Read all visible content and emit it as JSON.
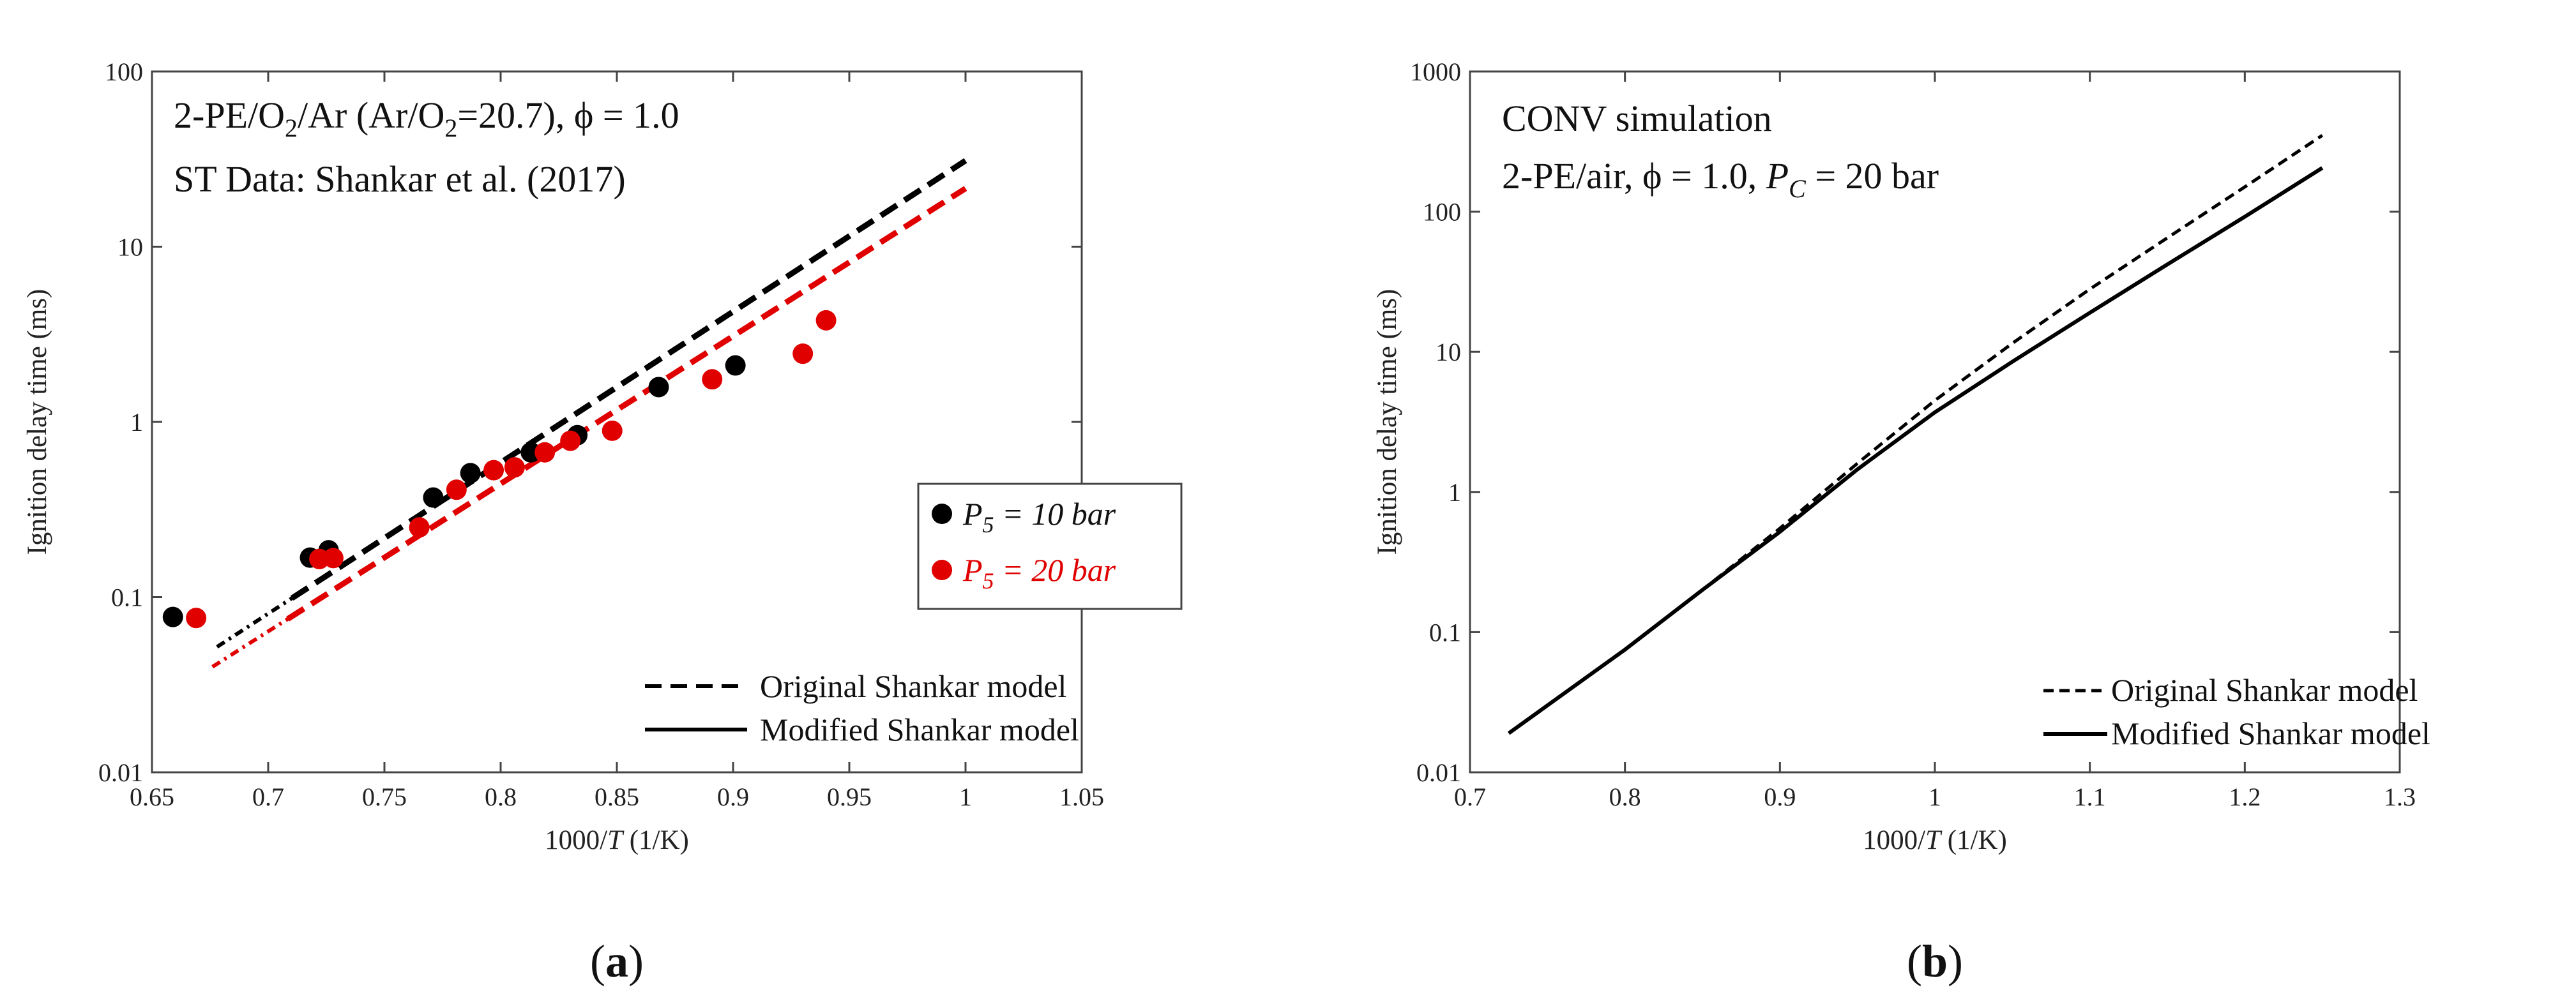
{
  "chart_data": [
    {
      "type": "scatter",
      "panel_caption": "(a)",
      "xlabel": "1000/T (1/K)",
      "ylabel": "Ignition delay time (ms)",
      "xlim": [
        0.65,
        1.05
      ],
      "ylim": [
        0.01,
        100
      ],
      "yscale": "log",
      "x_ticks": [
        "0.65",
        "0.7",
        "0.75",
        "0.8",
        "0.85",
        "0.9",
        "0.95",
        "1",
        "1.05"
      ],
      "y_ticks": [
        "0.01",
        "0.1",
        "1",
        "10",
        "100"
      ],
      "annotations": [
        "2-PE/O2/Ar (Ar/O2=20.7), ϕ = 1.0",
        "ST Data: Shankar et al. (2017)"
      ],
      "legend_data": [
        "P5 = 10 bar",
        "P5 = 20 bar"
      ],
      "legend_models": [
        "Original Shankar model",
        "Modified Shankar model"
      ],
      "colors": {
        "p10": "#000000",
        "p20": "#e00000"
      },
      "scatter_series": [
        {
          "name": "P5 = 10 bar",
          "color": "#000000",
          "x": [
            0.659,
            0.718,
            0.726,
            0.771,
            0.787,
            0.813,
            0.833,
            0.868,
            0.901
          ],
          "y": [
            0.077,
            0.168,
            0.185,
            0.37,
            0.51,
            0.67,
            0.84,
            1.58,
            2.1
          ]
        },
        {
          "name": "P5 = 20 bar",
          "color": "#e00000",
          "x": [
            0.669,
            0.722,
            0.728,
            0.765,
            0.781,
            0.797,
            0.806,
            0.819,
            0.83,
            0.848,
            0.891,
            0.93,
            0.94
          ],
          "y": [
            0.076,
            0.165,
            0.167,
            0.25,
            0.41,
            0.53,
            0.55,
            0.67,
            0.78,
            0.89,
            1.75,
            2.45,
            3.8
          ]
        }
      ],
      "line_series": [
        {
          "name": "Original Shankar model (10 bar)",
          "color": "#000000",
          "style": "dashdot-to-dash",
          "x": [
            0.678,
            1.0
          ],
          "y": [
            0.052,
            31.0
          ]
        },
        {
          "name": "Original Shankar model (20 bar)",
          "color": "#e00000",
          "style": "dashdot-to-dash",
          "x": [
            0.676,
            1.0
          ],
          "y": [
            0.04,
            21.5
          ]
        }
      ]
    },
    {
      "type": "line",
      "panel_caption": "(b)",
      "xlabel": "1000/T (1/K)",
      "ylabel": "Ignition delay time (ms)",
      "xlim": [
        0.7,
        1.3
      ],
      "ylim": [
        0.01,
        1000
      ],
      "yscale": "log",
      "x_ticks": [
        "0.7",
        "0.8",
        "0.9",
        "1",
        "1.1",
        "1.2",
        "1.3"
      ],
      "y_ticks": [
        "0.01",
        "0.1",
        "1",
        "10",
        "100",
        "1000"
      ],
      "annotations": [
        "CONV simulation",
        "2-PE/air, ϕ = 1.0, PC = 20 bar"
      ],
      "legend_models": [
        "Original Shankar model",
        "Modified Shankar model"
      ],
      "line_series": [
        {
          "name": "Original Shankar model",
          "style": "dash",
          "x": [
            0.725,
            0.8,
            0.85,
            0.9,
            0.95,
            1.0,
            1.05,
            1.1,
            1.15,
            1.2,
            1.25
          ],
          "y": [
            0.019,
            0.075,
            0.2,
            0.55,
            1.6,
            4.5,
            11.5,
            28,
            65,
            150,
            350
          ]
        },
        {
          "name": "Modified Shankar model",
          "style": "solid",
          "x": [
            0.725,
            0.8,
            0.85,
            0.9,
            0.95,
            1.0,
            1.05,
            1.1,
            1.15,
            1.2,
            1.25
          ],
          "y": [
            0.019,
            0.075,
            0.2,
            0.52,
            1.45,
            3.7,
            8.5,
            19,
            42,
            92,
            205
          ]
        }
      ]
    }
  ],
  "ui": {
    "a": {
      "xlabel_prefix": "1000/",
      "xlabel_var": "T",
      "xlabel_suffix": " (1/K)",
      "ylabel": "Ignition delay time (ms)",
      "note1_a": "2-PE/O",
      "note1_sub1": "2",
      "note1_b": "/Ar (Ar/O",
      "note1_sub2": "2",
      "note1_c": "=20.7), ϕ = 1.0",
      "note2": "ST Data: Shankar et al. (2017)",
      "leg1_var": "P",
      "leg1_sub": "5",
      "leg1_rest": " = 10 bar",
      "leg2_var": "P",
      "leg2_sub": "5",
      "leg2_rest": " = 20 bar",
      "model1": "Original Shankar model",
      "model2": "Modified Shankar model",
      "caption_open": "(",
      "caption_letter": "a",
      "caption_close": ")"
    },
    "b": {
      "xlabel_prefix": "1000/",
      "xlabel_var": "T",
      "xlabel_suffix": " (1/K)",
      "ylabel": "Ignition delay time (ms)",
      "note1": "CONV simulation",
      "note2_a": "2-PE/air, ϕ = 1.0, ",
      "note2_var": "P",
      "note2_sub": "C",
      "note2_b": " = 20 bar",
      "model1": "Original Shankar model",
      "model2": "Modified Shankar model",
      "caption_open": "(",
      "caption_letter": "b",
      "caption_close": ")"
    }
  }
}
